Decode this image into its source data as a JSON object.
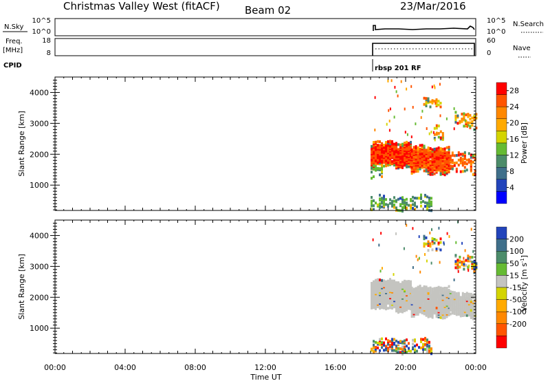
{
  "header": {
    "title": "Christmas Valley West (fitACF)",
    "beam": "Beam 02",
    "date": "23/Mar/2016"
  },
  "top_panels": {
    "nsky": {
      "left_label": "N.Sky",
      "left_ticks": [
        "10^5",
        "10^0"
      ],
      "right_ticks": [
        "10^5",
        "10^0"
      ],
      "right_label": "N.Search"
    },
    "freq": {
      "left_label_1": "Freq.",
      "left_label_2": "[MHz]",
      "left_ticks": [
        "18",
        "8"
      ],
      "right_ticks": [
        "60",
        "0"
      ],
      "right_label": "Nave"
    },
    "cpid": {
      "label": "CPID",
      "program": "rbsp 201 RF"
    }
  },
  "colors": {
    "power_scale": [
      "#0000ff",
      "#2244bb",
      "#3f6f8a",
      "#4c8c6a",
      "#66bb33",
      "#d4d400",
      "#ffaa00",
      "#ff8800",
      "#ff5500",
      "#ff0000"
    ],
    "velocity_scale": [
      "#ff0000",
      "#ff5500",
      "#ff8800",
      "#ffaa00",
      "#d4d400",
      "#c4c4c0",
      "#66bb33",
      "#4c8c6a",
      "#3f6f8a",
      "#2244bb"
    ],
    "ground_scatter": "#c4c4c0"
  },
  "chart_data": [
    {
      "type": "heatmap",
      "name": "power",
      "ylabel": "Slant Range [km]",
      "yticks": [
        "4000",
        "3000",
        "2000",
        "1000"
      ],
      "ytick_values": [
        4000,
        3000,
        2000,
        1000
      ],
      "ylim": [
        180,
        4500
      ],
      "xlim_hours": [
        0,
        24
      ],
      "colorbar": {
        "label": "Power [dB]",
        "ticks": [
          "28",
          "24",
          "20",
          "16",
          "12",
          "8",
          "4"
        ],
        "tick_values": [
          28,
          24,
          20,
          16,
          12,
          8,
          4
        ],
        "range": [
          0,
          30
        ]
      },
      "regions": [
        {
          "t0": 18.0,
          "t1": 20.3,
          "r0": 1550,
          "r1": 2350,
          "level": 27
        },
        {
          "t0": 20.3,
          "t1": 22.5,
          "r0": 1350,
          "r1": 2200,
          "level": 26
        },
        {
          "t0": 22.5,
          "t1": 24.0,
          "r0": 1350,
          "r1": 2000,
          "level": 25
        },
        {
          "t0": 18.0,
          "t1": 18.6,
          "r0": 1200,
          "r1": 1600,
          "level": 14
        },
        {
          "t0": 21.6,
          "t1": 22.1,
          "r0": 2500,
          "r1": 2900,
          "level": 22
        },
        {
          "t0": 22.8,
          "t1": 24.0,
          "r0": 2850,
          "r1": 3300,
          "level": 20
        },
        {
          "t0": 21.0,
          "t1": 22.0,
          "r0": 3500,
          "r1": 3800,
          "level": 18
        },
        {
          "t0": 18.0,
          "t1": 21.5,
          "r0": 180,
          "r1": 600,
          "level": 12
        }
      ]
    },
    {
      "type": "heatmap",
      "name": "velocity",
      "ylabel": "Slant Range [km]",
      "xlabel": "Time UT",
      "yticks": [
        "4000",
        "3000",
        "2000",
        "1000"
      ],
      "ytick_values": [
        4000,
        3000,
        2000,
        1000
      ],
      "ylim": [
        180,
        4500
      ],
      "xlim_hours": [
        0,
        24
      ],
      "xticks": [
        "00:00",
        "04:00",
        "08:00",
        "12:00",
        "16:00",
        "20:00",
        "00:00"
      ],
      "xtick_hours": [
        0,
        4,
        8,
        12,
        16,
        20,
        24
      ],
      "colorbar": {
        "label": "Velocity [m s",
        "label_exp": "-1",
        "label_end": "]",
        "ticks": [
          "200",
          "100",
          "50",
          "15",
          "-15",
          "-50",
          "-100",
          "-200"
        ]
      },
      "regions": [
        {
          "t0": 18.0,
          "t1": 20.3,
          "r0": 1550,
          "r1": 2500,
          "cls": "gs"
        },
        {
          "t0": 20.3,
          "t1": 22.5,
          "r0": 1350,
          "r1": 2300,
          "cls": "gs"
        },
        {
          "t0": 22.5,
          "t1": 24.0,
          "r0": 1350,
          "r1": 2100,
          "cls": "gs"
        },
        {
          "t0": 22.8,
          "t1": 24.0,
          "r0": 2850,
          "r1": 3300,
          "cls": "mix"
        },
        {
          "t0": 21.0,
          "t1": 22.0,
          "r0": 3500,
          "r1": 3900,
          "cls": "mix"
        },
        {
          "t0": 18.0,
          "t1": 21.5,
          "r0": 180,
          "r1": 600,
          "cls": "mix"
        }
      ]
    }
  ]
}
